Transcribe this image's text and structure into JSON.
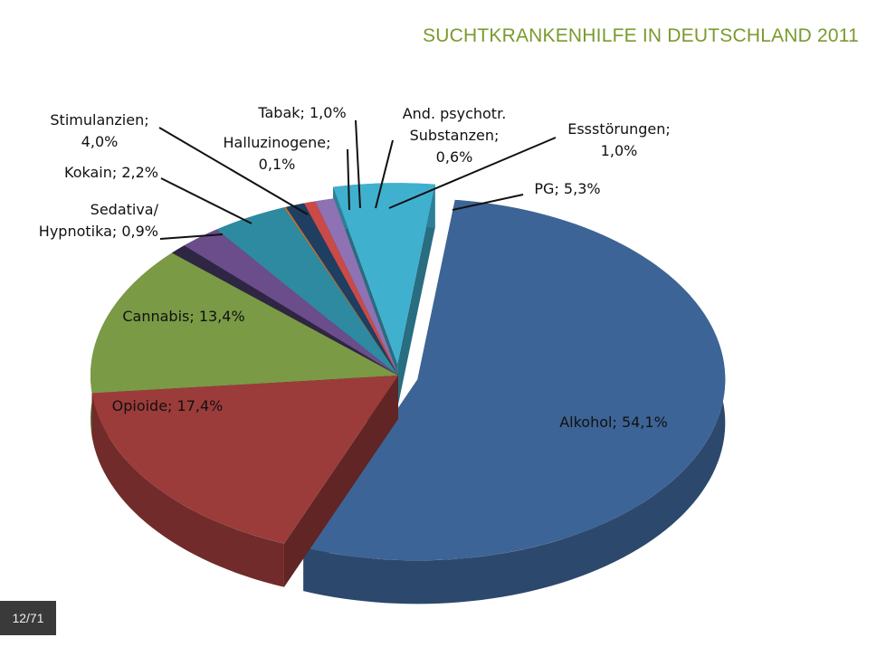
{
  "slide": {
    "title": "SUCHTKRANKENHILFE IN DEUTSCHLAND 2011",
    "page_counter": "12/71"
  },
  "chart_data": {
    "type": "pie",
    "title": "SUCHTKRANKENHILFE IN DEUTSCHLAND 2011",
    "three_d": true,
    "exploded": true,
    "slices": [
      {
        "key": "alkohol",
        "label_lines": [
          "Alkohol; 54,1%"
        ],
        "value": 54.1,
        "color": "#3d6496"
      },
      {
        "key": "opioide",
        "label_lines": [
          "Opioide; 17,4%"
        ],
        "value": 17.4,
        "color": "#9b3c3a"
      },
      {
        "key": "cannabis",
        "label_lines": [
          "Cannabis; 13,4%"
        ],
        "value": 13.4,
        "color": "#7a9a45"
      },
      {
        "key": "sedativa",
        "label_lines": [
          "Sedativa/",
          "Hypnotika; 0,9%"
        ],
        "value": 0.9,
        "color": "#2e2643"
      },
      {
        "key": "kokain",
        "label_lines": [
          "Kokain; 2,2%"
        ],
        "value": 2.2,
        "color": "#6a4d8a"
      },
      {
        "key": "stimulanzien",
        "label_lines": [
          "Stimulanzien;",
          "4,0%"
        ],
        "value": 4.0,
        "color": "#2e8aa0"
      },
      {
        "key": "halluzinogene",
        "label_lines": [
          "Halluzinogene;",
          "0,1%"
        ],
        "value": 0.1,
        "color": "#c8732c"
      },
      {
        "key": "tabak",
        "label_lines": [
          "Tabak; 1,0%"
        ],
        "value": 1.0,
        "color": "#1e3e62"
      },
      {
        "key": "andpsych",
        "label_lines": [
          "And. psychotr.",
          "Substanzen;",
          "0,6%"
        ],
        "value": 0.6,
        "color": "#c94a46"
      },
      {
        "key": "essstoerungen",
        "label_lines": [
          "Essstörungen;",
          "1,0%"
        ],
        "value": 1.0,
        "color": "#8f72b3"
      },
      {
        "key": "pg",
        "label_lines": [
          "PG; 5,3%"
        ],
        "value": 5.3,
        "color": "#40b0cf"
      }
    ]
  }
}
